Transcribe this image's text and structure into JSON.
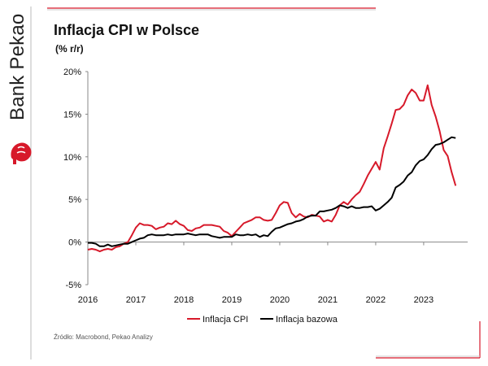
{
  "brand": {
    "name": "Bank Pekao"
  },
  "header": {
    "title": "Inflacja CPI w Polsce",
    "subtitle": "(% r/r)"
  },
  "footer": {
    "source": "Źródło: Macrobond, Pekao Analizy"
  },
  "colors": {
    "accent": "#d7192a",
    "cpi": "#d7192a",
    "core": "#000000",
    "axis": "#888888"
  },
  "chart_data": {
    "type": "line",
    "title": "",
    "xlabel": "",
    "ylabel": "",
    "x_ticks": [
      "2016",
      "2017",
      "2018",
      "2019",
      "2020",
      "2021",
      "2022",
      "2023"
    ],
    "y_ticks": [
      "-5%",
      "0%",
      "5%",
      "10%",
      "15%",
      "20%"
    ],
    "y_tick_values": [
      -5,
      0,
      5,
      10,
      15,
      20
    ],
    "ylim": [
      -5,
      20
    ],
    "xlim": [
      2016.0,
      2023.917
    ],
    "x_start": 2016.0,
    "x_step_months": 1,
    "grid": false,
    "legend_position": "bottom",
    "series": [
      {
        "name": "Inflacja CPI",
        "color": "#d7192a",
        "values": [
          -0.9,
          -0.8,
          -0.9,
          -1.1,
          -0.9,
          -0.8,
          -0.9,
          -0.6,
          -0.5,
          -0.2,
          0.0,
          0.8,
          1.7,
          2.2,
          2.0,
          2.0,
          1.9,
          1.5,
          1.7,
          1.8,
          2.2,
          2.1,
          2.5,
          2.1,
          1.9,
          1.4,
          1.3,
          1.6,
          1.7,
          2.0,
          2.0,
          2.0,
          1.9,
          1.8,
          1.3,
          1.1,
          0.7,
          1.2,
          1.7,
          2.2,
          2.4,
          2.6,
          2.9,
          2.9,
          2.6,
          2.5,
          2.6,
          3.4,
          4.3,
          4.7,
          4.6,
          3.4,
          2.9,
          3.3,
          3.0,
          2.9,
          3.2,
          3.1,
          3.0,
          2.4,
          2.6,
          2.4,
          3.2,
          4.3,
          4.7,
          4.4,
          5.0,
          5.5,
          5.9,
          6.8,
          7.8,
          8.6,
          9.4,
          8.5,
          11.0,
          12.4,
          13.9,
          15.5,
          15.6,
          16.1,
          17.2,
          17.9,
          17.5,
          16.6,
          16.6,
          18.4,
          16.1,
          14.7,
          13.0,
          10.8,
          10.1,
          8.2,
          6.6
        ]
      },
      {
        "name": "Inflacja bazowa",
        "color": "#000000",
        "values": [
          -0.1,
          -0.1,
          -0.2,
          -0.5,
          -0.5,
          -0.3,
          -0.5,
          -0.4,
          -0.3,
          -0.2,
          -0.2,
          0.0,
          0.2,
          0.4,
          0.5,
          0.8,
          0.9,
          0.8,
          0.8,
          0.8,
          0.9,
          0.8,
          0.9,
          0.9,
          0.9,
          1.0,
          0.9,
          0.8,
          0.9,
          0.9,
          0.9,
          0.7,
          0.6,
          0.5,
          0.6,
          0.6,
          0.6,
          0.9,
          0.8,
          0.8,
          0.9,
          0.8,
          0.9,
          0.6,
          0.8,
          0.7,
          1.2,
          1.6,
          1.7,
          1.9,
          2.1,
          2.2,
          2.4,
          2.5,
          2.7,
          3.0,
          3.1,
          3.1,
          3.6,
          3.6,
          3.7,
          3.8,
          4.0,
          4.3,
          4.2,
          4.0,
          4.2,
          4.0,
          4.0,
          4.1,
          4.1,
          4.2,
          3.7,
          3.9,
          4.3,
          4.7,
          5.2,
          6.4,
          6.7,
          7.1,
          7.8,
          8.2,
          9.0,
          9.5,
          9.7,
          10.2,
          10.9,
          11.4,
          11.5,
          11.7,
          12.0,
          12.3,
          12.2
        ]
      }
    ]
  }
}
